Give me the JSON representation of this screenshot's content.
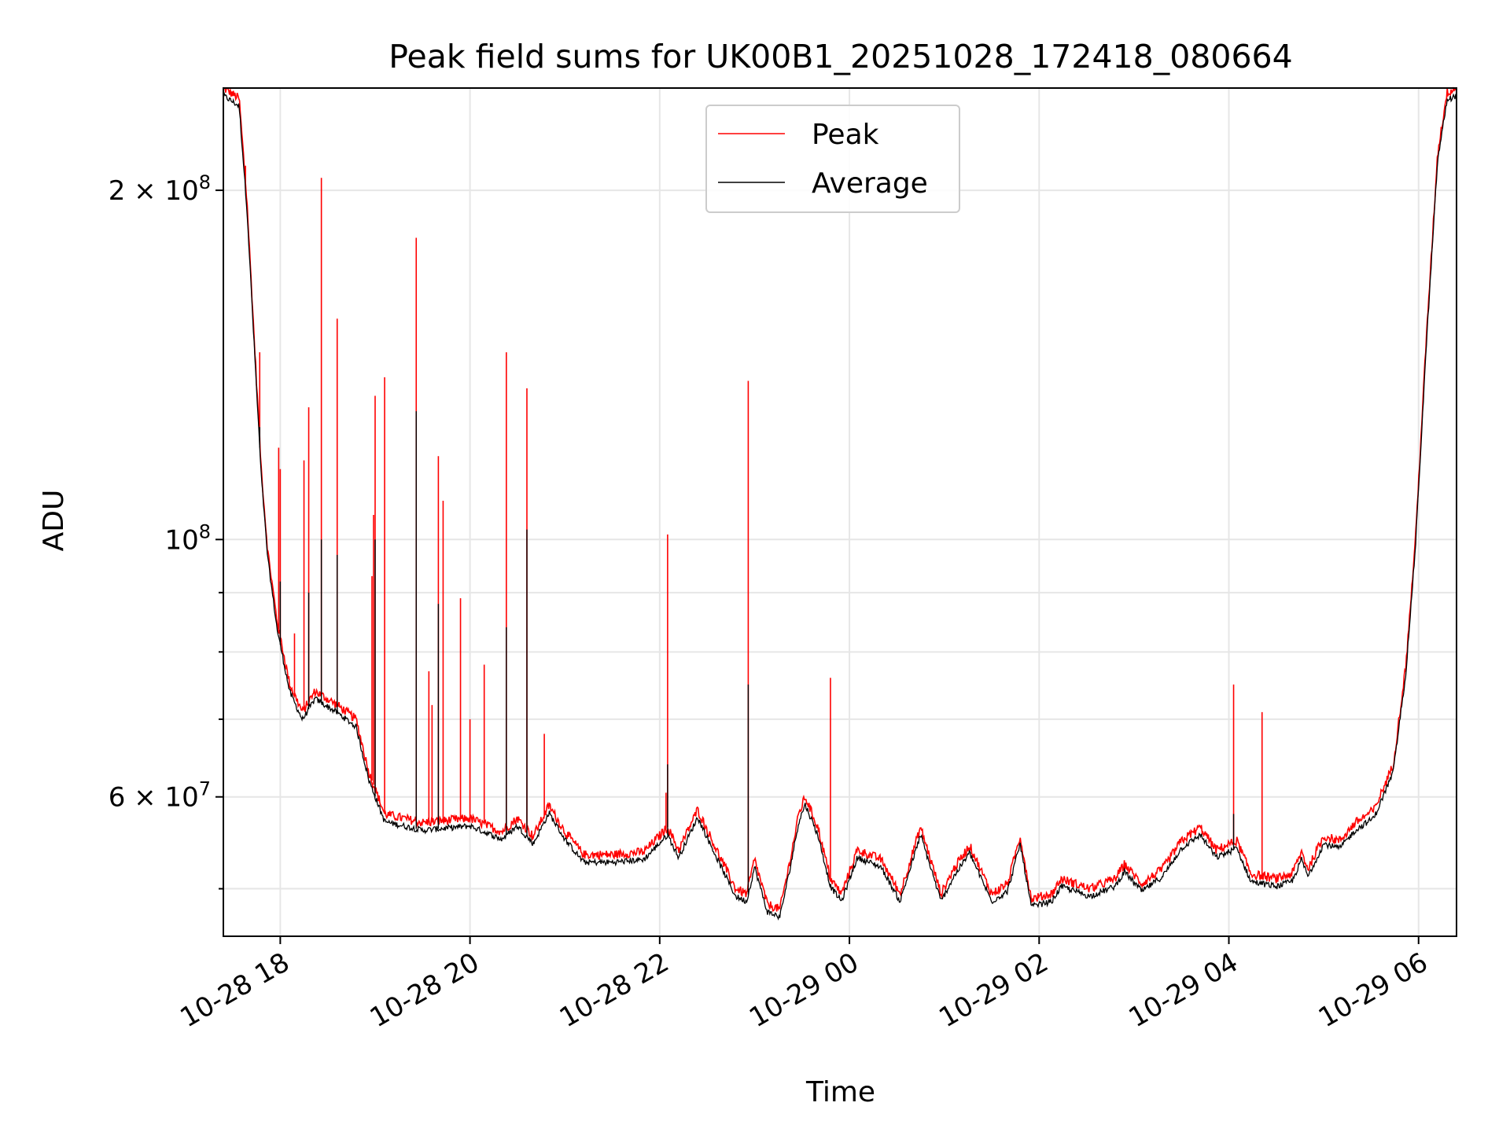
{
  "chart_data": {
    "type": "line",
    "title": "Peak field sums for UK00B1_20251028_172418_080664",
    "xlabel": "Time",
    "ylabel": "ADU",
    "y_scale": "log",
    "xlim": [
      "2025-10-28 17:24",
      "2025-10-29 06:24"
    ],
    "ylim": [
      45500000,
      245000000
    ],
    "x_ticks": [
      {
        "value": "2025-10-28 18:00",
        "label": "10-28 18"
      },
      {
        "value": "2025-10-28 20:00",
        "label": "10-28 20"
      },
      {
        "value": "2025-10-28 22:00",
        "label": "10-28 22"
      },
      {
        "value": "2025-10-29 00:00",
        "label": "10-29 00"
      },
      {
        "value": "2025-10-29 02:00",
        "label": "10-29 02"
      },
      {
        "value": "2025-10-29 04:00",
        "label": "10-29 04"
      },
      {
        "value": "2025-10-29 06:00",
        "label": "10-29 06"
      }
    ],
    "y_ticks_major": [
      {
        "value": 60000000,
        "label": "6 × 10⁷",
        "base": "6 × 10",
        "exp": "7"
      },
      {
        "value": 100000000,
        "label": "10⁸",
        "base": "10",
        "exp": "8"
      },
      {
        "value": 200000000,
        "label": "2 × 10⁸",
        "base": "2 × 10",
        "exp": "8"
      }
    ],
    "y_ticks_minor": [
      50000000,
      70000000,
      80000000,
      90000000
    ],
    "grid": true,
    "legend": {
      "position": "top-center"
    },
    "series": [
      {
        "name": "Peak",
        "color": "#ff0000",
        "baseline": [
          [
            "2025-10-28 17:24",
            245000000
          ],
          [
            "2025-10-28 17:34",
            240000000
          ],
          [
            "2025-10-28 17:39",
            195000000
          ],
          [
            "2025-10-28 17:44",
            145000000
          ],
          [
            "2025-10-28 17:48",
            115000000
          ],
          [
            "2025-10-28 17:52",
            98000000
          ],
          [
            "2025-10-28 17:58",
            85000000
          ],
          [
            "2025-10-28 18:06",
            75000000
          ],
          [
            "2025-10-28 18:14",
            71000000
          ],
          [
            "2025-10-28 18:22",
            74000000
          ],
          [
            "2025-10-28 18:36",
            72000000
          ],
          [
            "2025-10-28 18:48",
            70000000
          ],
          [
            "2025-10-28 18:56",
            63000000
          ],
          [
            "2025-10-28 19:06",
            58000000
          ],
          [
            "2025-10-28 19:30",
            57000000
          ],
          [
            "2025-10-28 20:00",
            57500000
          ],
          [
            "2025-10-28 20:20",
            56000000
          ],
          [
            "2025-10-28 20:30",
            57500000
          ],
          [
            "2025-10-28 20:40",
            55500000
          ],
          [
            "2025-10-28 20:50",
            59000000
          ],
          [
            "2025-10-28 21:00",
            56000000
          ],
          [
            "2025-10-28 21:12",
            53500000
          ],
          [
            "2025-10-28 21:30",
            53500000
          ],
          [
            "2025-10-28 21:50",
            53800000
          ],
          [
            "2025-10-28 22:05",
            56500000
          ],
          [
            "2025-10-28 22:12",
            54000000
          ],
          [
            "2025-10-28 22:24",
            58500000
          ],
          [
            "2025-10-28 22:36",
            54000000
          ],
          [
            "2025-10-28 22:48",
            50000000
          ],
          [
            "2025-10-28 22:55",
            49500000
          ],
          [
            "2025-10-28 23:00",
            53000000
          ],
          [
            "2025-10-28 23:08",
            48500000
          ],
          [
            "2025-10-28 23:16",
            48000000
          ],
          [
            "2025-10-28 23:22",
            52500000
          ],
          [
            "2025-10-28 23:28",
            58000000
          ],
          [
            "2025-10-28 23:32",
            60000000
          ],
          [
            "2025-10-28 23:40",
            56500000
          ],
          [
            "2025-10-28 23:48",
            51000000
          ],
          [
            "2025-10-28 23:55",
            49500000
          ],
          [
            "2025-10-29 00:05",
            54000000
          ],
          [
            "2025-10-29 00:20",
            53000000
          ],
          [
            "2025-10-29 00:32",
            49500000
          ],
          [
            "2025-10-29 00:45",
            56500000
          ],
          [
            "2025-10-29 00:58",
            49500000
          ],
          [
            "2025-10-29 01:06",
            52000000
          ],
          [
            "2025-10-29 01:16",
            54500000
          ],
          [
            "2025-10-29 01:30",
            49500000
          ],
          [
            "2025-10-29 01:40",
            50500000
          ],
          [
            "2025-10-29 01:48",
            55500000
          ],
          [
            "2025-10-29 01:55",
            49000000
          ],
          [
            "2025-10-29 02:08",
            49500000
          ],
          [
            "2025-10-29 02:14",
            51000000
          ],
          [
            "2025-10-29 02:32",
            50000000
          ],
          [
            "2025-10-29 02:48",
            51000000
          ],
          [
            "2025-10-29 02:54",
            52500000
          ],
          [
            "2025-10-29 03:05",
            50500000
          ],
          [
            "2025-10-29 03:18",
            52000000
          ],
          [
            "2025-10-29 03:30",
            55000000
          ],
          [
            "2025-10-29 03:42",
            56500000
          ],
          [
            "2025-10-29 03:52",
            54000000
          ],
          [
            "2025-10-29 04:05",
            55000000
          ],
          [
            "2025-10-29 04:14",
            51500000
          ],
          [
            "2025-10-29 04:30",
            51000000
          ],
          [
            "2025-10-29 04:40",
            51500000
          ],
          [
            "2025-10-29 04:46",
            53800000
          ],
          [
            "2025-10-29 04:50",
            52000000
          ],
          [
            "2025-10-29 05:00",
            55500000
          ],
          [
            "2025-10-29 05:10",
            55000000
          ],
          [
            "2025-10-29 05:20",
            57000000
          ],
          [
            "2025-10-29 05:32",
            58500000
          ],
          [
            "2025-10-29 05:44",
            64000000
          ],
          [
            "2025-10-29 05:52",
            78000000
          ],
          [
            "2025-10-29 05:58",
            100000000
          ],
          [
            "2025-10-29 06:05",
            150000000
          ],
          [
            "2025-10-29 06:12",
            215000000
          ],
          [
            "2025-10-29 06:18",
            243000000
          ],
          [
            "2025-10-29 06:24",
            245000000
          ]
        ],
        "spikes": [
          [
            "2025-10-28 17:38",
            210000000
          ],
          [
            "2025-10-28 17:47",
            145000000
          ],
          [
            "2025-10-28 17:59",
            120000000
          ],
          [
            "2025-10-28 18:00",
            115000000
          ],
          [
            "2025-10-28 18:09",
            83000000
          ],
          [
            "2025-10-28 18:15",
            117000000
          ],
          [
            "2025-10-28 18:18",
            130000000
          ],
          [
            "2025-10-28 18:26",
            205000000
          ],
          [
            "2025-10-28 18:36",
            155000000
          ],
          [
            "2025-10-28 18:58",
            93000000
          ],
          [
            "2025-10-28 18:59",
            105000000
          ],
          [
            "2025-10-28 19:00",
            133000000
          ],
          [
            "2025-10-28 19:06",
            138000000
          ],
          [
            "2025-10-28 19:26",
            182000000
          ],
          [
            "2025-10-28 19:34",
            77000000
          ],
          [
            "2025-10-28 19:36",
            72000000
          ],
          [
            "2025-10-28 19:40",
            118000000
          ],
          [
            "2025-10-28 19:43",
            108000000
          ],
          [
            "2025-10-28 19:54",
            89000000
          ],
          [
            "2025-10-28 20:00",
            70000000
          ],
          [
            "2025-10-28 20:09",
            78000000
          ],
          [
            "2025-10-28 20:23",
            145000000
          ],
          [
            "2025-10-28 20:36",
            135000000
          ],
          [
            "2025-10-28 20:47",
            68000000
          ],
          [
            "2025-10-28 22:04",
            60500000
          ],
          [
            "2025-10-28 22:05",
            101000000
          ],
          [
            "2025-10-28 22:56",
            137000000
          ],
          [
            "2025-10-28 23:48",
            76000000
          ],
          [
            "2025-10-29 04:03",
            75000000
          ],
          [
            "2025-10-29 04:21",
            71000000
          ]
        ]
      },
      {
        "name": "Average",
        "color": "#000000",
        "offset_ratio": 0.985,
        "spikes": [
          [
            "2025-10-28 17:47",
            125000000
          ],
          [
            "2025-10-28 18:00",
            92000000
          ],
          [
            "2025-10-28 18:26",
            100000000
          ],
          [
            "2025-10-28 18:18",
            90000000
          ],
          [
            "2025-10-28 18:36",
            97000000
          ],
          [
            "2025-10-28 19:00",
            100000000
          ],
          [
            "2025-10-28 19:26",
            129000000
          ],
          [
            "2025-10-28 19:40",
            88000000
          ],
          [
            "2025-10-28 20:23",
            84000000
          ],
          [
            "2025-10-28 20:36",
            102000000
          ],
          [
            "2025-10-28 22:05",
            64000000
          ],
          [
            "2025-10-28 22:56",
            75000000
          ],
          [
            "2025-10-29 04:03",
            58000000
          ]
        ]
      }
    ]
  }
}
